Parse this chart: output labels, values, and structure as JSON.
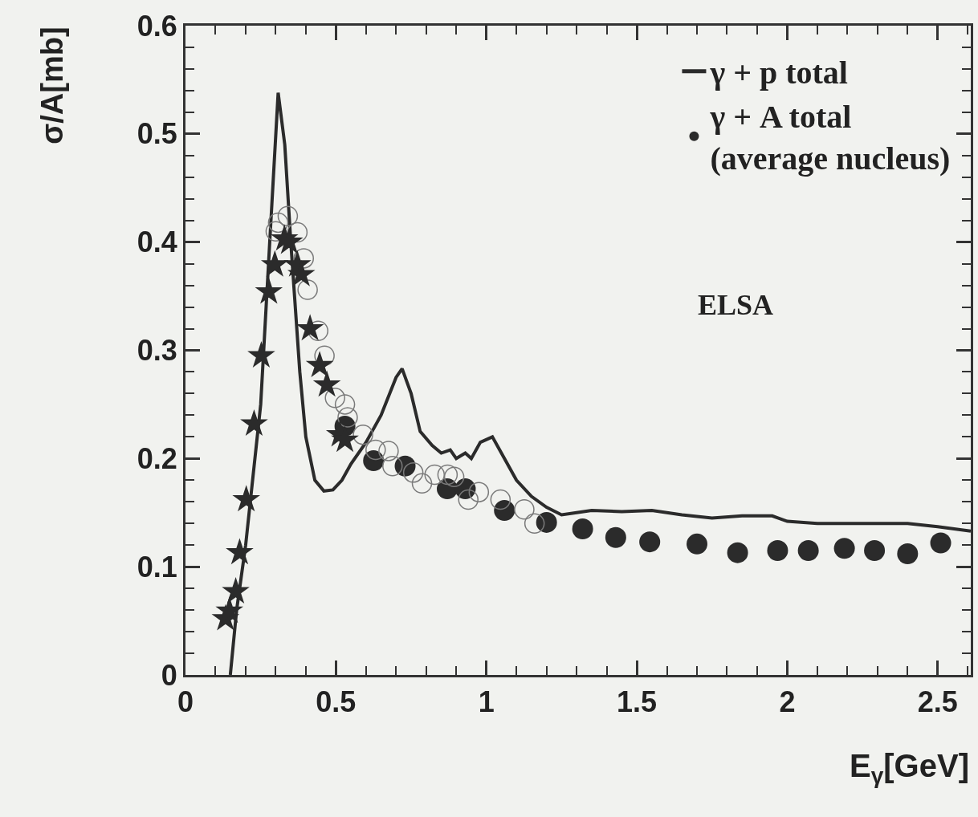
{
  "chart_data": {
    "type": "scatter",
    "xlabel": "E$_{γ}$[GeV]",
    "ylabel": "σ/A[mb]",
    "xlim": [
      0,
      2.61
    ],
    "ylim": [
      0,
      0.6
    ],
    "xticks": [
      0,
      0.5,
      1,
      1.5,
      2,
      2.5
    ],
    "yticks": [
      0,
      0.1,
      0.2,
      0.3,
      0.4,
      0.5,
      0.6
    ],
    "grid": false,
    "legend": "top right",
    "annotations": [
      "ELSA"
    ],
    "series": [
      {
        "name": "γ + p total",
        "type": "line",
        "color": "#2b2b2b",
        "marker": "none",
        "line_style": "solid",
        "x": [
          0.149,
          0.17,
          0.2,
          0.25,
          0.28,
          0.308,
          0.33,
          0.35,
          0.38,
          0.4,
          0.43,
          0.46,
          0.49,
          0.52,
          0.55,
          0.6,
          0.65,
          0.7,
          0.72,
          0.75,
          0.78,
          0.82,
          0.85,
          0.88,
          0.9,
          0.93,
          0.95,
          0.98,
          1.02,
          1.05,
          1.1,
          1.15,
          1.2,
          1.25,
          1.3,
          1.35,
          1.45,
          1.55,
          1.65,
          1.75,
          1.85,
          1.95,
          2.0,
          2.1,
          2.2,
          2.3,
          2.4,
          2.5,
          2.61
        ],
        "values": [
          0,
          0.06,
          0.12,
          0.25,
          0.4,
          0.538,
          0.49,
          0.4,
          0.28,
          0.22,
          0.18,
          0.17,
          0.171,
          0.18,
          0.195,
          0.215,
          0.24,
          0.275,
          0.283,
          0.26,
          0.225,
          0.212,
          0.205,
          0.208,
          0.2,
          0.205,
          0.2,
          0.215,
          0.22,
          0.205,
          0.18,
          0.165,
          0.155,
          0.148,
          0.15,
          0.152,
          0.151,
          0.152,
          0.148,
          0.145,
          0.147,
          0.147,
          0.142,
          0.14,
          0.14,
          0.14,
          0.14,
          0.137,
          0.133
        ]
      },
      {
        "name": "γ + A total\n(average nucleus)",
        "color": "#2b2b2b",
        "marker": "circle",
        "x": [
          0.53,
          0.625,
          0.73,
          0.87,
          0.93,
          1.06,
          1.2,
          1.32,
          1.43,
          1.543,
          1.7,
          1.835,
          1.968,
          2.07,
          2.19,
          2.29,
          2.4,
          2.51
        ],
        "values": [
          0.23,
          0.198,
          0.193,
          0.172,
          0.172,
          0.152,
          0.141,
          0.135,
          0.127,
          0.123,
          0.121,
          0.113,
          0.115,
          0.115,
          0.117,
          0.115,
          0.112,
          0.122
        ]
      },
      {
        "color": "#7a7a7a",
        "marker": "circle-open",
        "x": [
          0.3,
          0.308,
          0.34,
          0.372,
          0.393,
          0.406,
          0.441,
          0.462,
          0.497,
          0.53,
          0.539,
          0.59,
          0.632,
          0.675,
          0.688,
          0.757,
          0.786,
          0.828,
          0.871,
          0.893,
          0.94,
          0.975,
          1.047,
          1.126,
          1.16
        ],
        "values": [
          0.41,
          0.418,
          0.424,
          0.409,
          0.385,
          0.356,
          0.318,
          0.295,
          0.256,
          0.25,
          0.238,
          0.222,
          0.208,
          0.207,
          0.193,
          0.187,
          0.177,
          0.185,
          0.185,
          0.183,
          0.162,
          0.169,
          0.162,
          0.153,
          0.14
        ]
      },
      {
        "color": "#2b2b2b",
        "marker": "star",
        "x": [
          0.133,
          0.146,
          0.167,
          0.18,
          0.202,
          0.228,
          0.252,
          0.277,
          0.297,
          0.329,
          0.345,
          0.372,
          0.385,
          0.414,
          0.446,
          0.47,
          0.513,
          0.53
        ],
        "values": [
          0.052,
          0.059,
          0.077,
          0.113,
          0.162,
          0.232,
          0.295,
          0.354,
          0.379,
          0.403,
          0.4,
          0.379,
          0.37,
          0.32,
          0.286,
          0.268,
          0.222,
          0.217
        ]
      }
    ]
  }
}
